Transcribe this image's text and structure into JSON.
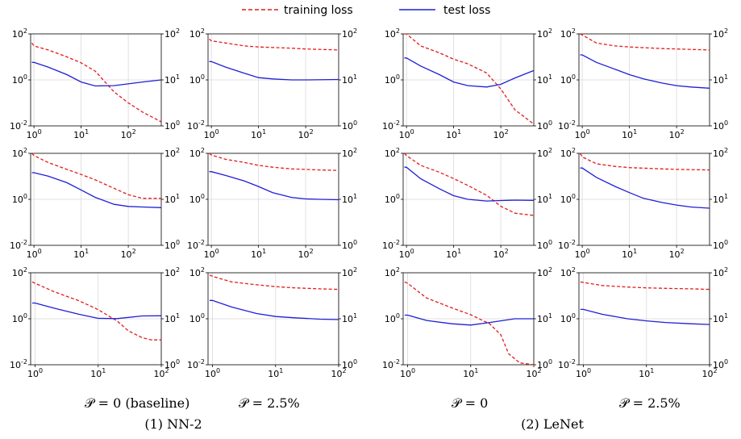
{
  "legend": {
    "training_label": "training loss",
    "test_label": "test loss",
    "training_color": "#e41a1c",
    "test_color": "#1f1fd6"
  },
  "captions": {
    "group1": "(1) NN-2",
    "group2": "(2) LeNet",
    "col1": "𝒫 = 0 (baseline)",
    "col2": "𝒫 = 2.5%",
    "col3": "𝒫 = 0",
    "col4": "𝒫 = 2.5%"
  },
  "chart_data": [
    {
      "type": "line",
      "row": 1,
      "col": 1,
      "xscale": "log",
      "xlim": [
        1,
        500
      ],
      "xticks": [
        "10^0",
        "10^1",
        "10^2"
      ],
      "left_yticks": [
        "10^-2",
        "10^0",
        "10^2"
      ],
      "right_yticks": [
        "10^0",
        "10^1",
        "10^2"
      ],
      "grid": true,
      "series": [
        {
          "name": "training loss",
          "axis": "left",
          "style": "dashed",
          "x": [
            0.9,
            1,
            2,
            5,
            10,
            20,
            50,
            100,
            200,
            500
          ],
          "y": [
            40,
            30,
            20,
            10,
            5.5,
            2.4,
            0.3,
            0.1,
            0.04,
            0.015
          ]
        },
        {
          "name": "test loss",
          "axis": "right",
          "style": "solid",
          "x": [
            0.9,
            1,
            2,
            5,
            10,
            20,
            50,
            100,
            200,
            500
          ],
          "y": [
            24,
            24,
            19,
            13,
            9,
            7.4,
            7.5,
            8.2,
            9,
            10
          ]
        }
      ]
    },
    {
      "type": "line",
      "row": 1,
      "col": 2,
      "xscale": "log",
      "xlim": [
        1,
        500
      ],
      "xticks": [
        "10^0",
        "10^1",
        "10^2"
      ],
      "left_yticks": [
        "10^-2",
        "10^0",
        "10^2"
      ],
      "right_yticks": [
        "10^0",
        "10^1",
        "10^2"
      ],
      "grid": true,
      "series": [
        {
          "name": "training loss",
          "axis": "left",
          "style": "dashed",
          "x": [
            0.9,
            1,
            2,
            5,
            10,
            50,
            100,
            500
          ],
          "y": [
            60,
            50,
            40,
            30,
            27,
            24,
            22,
            20
          ]
        },
        {
          "name": "test loss",
          "axis": "right",
          "style": "solid",
          "x": [
            0.9,
            1,
            2,
            5,
            10,
            20,
            50,
            100,
            500
          ],
          "y": [
            25,
            25,
            19,
            14,
            11.2,
            10.5,
            10,
            10,
            10.2
          ]
        }
      ]
    },
    {
      "type": "line",
      "row": 1,
      "col": 3,
      "xscale": "log",
      "xlim": [
        1,
        500
      ],
      "xticks": [
        "10^0",
        "10^1",
        "10^2"
      ],
      "left_yticks": [
        "10^-2",
        "10^0",
        "10^2"
      ],
      "right_yticks": [
        "10^0",
        "10^1",
        "10^2"
      ],
      "grid": true,
      "series": [
        {
          "name": "training loss",
          "axis": "left",
          "style": "dashed",
          "x": [
            0.9,
            1,
            2,
            5,
            10,
            20,
            50,
            100,
            200,
            500
          ],
          "y": [
            150,
            100,
            30,
            15,
            8,
            5,
            2,
            0.4,
            0.05,
            0.012
          ]
        },
        {
          "name": "test loss",
          "axis": "right",
          "style": "solid",
          "x": [
            0.9,
            1,
            2,
            5,
            10,
            20,
            50,
            100,
            200,
            500
          ],
          "y": [
            30,
            30,
            20,
            13,
            9,
            7.5,
            7,
            8,
            11,
            16
          ]
        }
      ]
    },
    {
      "type": "line",
      "row": 1,
      "col": 4,
      "xscale": "log",
      "xlim": [
        1,
        500
      ],
      "xticks": [
        "10^0",
        "10^1",
        "10^2"
      ],
      "left_yticks": [
        "10^-2",
        "10^0",
        "10^2"
      ],
      "right_yticks": [
        "10^0",
        "10^1",
        "10^2"
      ],
      "grid": true,
      "series": [
        {
          "name": "training loss",
          "axis": "left",
          "style": "dashed",
          "x": [
            0.9,
            1,
            2,
            5,
            10,
            50,
            100,
            500
          ],
          "y": [
            150,
            90,
            40,
            30,
            27,
            23,
            22,
            20
          ]
        },
        {
          "name": "test loss",
          "axis": "right",
          "style": "solid",
          "x": [
            0.9,
            1,
            2,
            5,
            10,
            20,
            50,
            100,
            200,
            500
          ],
          "y": [
            35,
            35,
            24,
            17,
            13,
            10.5,
            8.5,
            7.5,
            7,
            6.6
          ]
        }
      ]
    },
    {
      "type": "line",
      "row": 2,
      "col": 1,
      "xscale": "log",
      "xlim": [
        1,
        500
      ],
      "xticks": [
        "10^0",
        "10^1",
        "10^2"
      ],
      "left_yticks": [
        "10^-2",
        "10^0",
        "10^2"
      ],
      "right_yticks": [
        "10^0",
        "10^1",
        "10^2"
      ],
      "grid": true,
      "series": [
        {
          "name": "training loss",
          "axis": "left",
          "style": "dashed",
          "x": [
            0.9,
            1,
            2,
            5,
            10,
            20,
            50,
            100,
            200,
            500
          ],
          "y": [
            100,
            80,
            40,
            20,
            12,
            7,
            3,
            1.6,
            1.1,
            1.1
          ]
        },
        {
          "name": "test loss",
          "axis": "right",
          "style": "solid",
          "x": [
            0.9,
            1,
            2,
            5,
            10,
            20,
            50,
            100,
            200,
            500
          ],
          "y": [
            38,
            38,
            32,
            23,
            16,
            11,
            7.8,
            7,
            6.8,
            6.6
          ]
        }
      ]
    },
    {
      "type": "line",
      "row": 2,
      "col": 2,
      "xscale": "log",
      "xlim": [
        1,
        500
      ],
      "xticks": [
        "10^0",
        "10^1",
        "10^2"
      ],
      "left_yticks": [
        "10^-2",
        "10^0",
        "10^2"
      ],
      "right_yticks": [
        "10^0",
        "10^1",
        "10^2"
      ],
      "grid": true,
      "series": [
        {
          "name": "training loss",
          "axis": "left",
          "style": "dashed",
          "x": [
            0.9,
            1,
            2,
            5,
            10,
            20,
            50,
            100,
            200,
            500
          ],
          "y": [
            100,
            85,
            55,
            40,
            30,
            25,
            21,
            20,
            19,
            18
          ]
        },
        {
          "name": "test loss",
          "axis": "right",
          "style": "solid",
          "x": [
            0.9,
            1,
            2,
            5,
            10,
            20,
            50,
            100,
            200,
            500
          ],
          "y": [
            40,
            40,
            33,
            25,
            19,
            14,
            11,
            10.2,
            10,
            9.8
          ]
        }
      ]
    },
    {
      "type": "line",
      "row": 2,
      "col": 3,
      "xscale": "log",
      "xlim": [
        1,
        500
      ],
      "xticks": [
        "10^0",
        "10^1",
        "10^2"
      ],
      "left_yticks": [
        "10^-2",
        "10^0",
        "10^2"
      ],
      "right_yticks": [
        "10^0",
        "10^1",
        "10^2"
      ],
      "grid": true,
      "series": [
        {
          "name": "training loss",
          "axis": "left",
          "style": "dashed",
          "x": [
            0.9,
            1,
            2,
            5,
            10,
            20,
            50,
            100,
            200,
            500
          ],
          "y": [
            120,
            80,
            30,
            15,
            8,
            4,
            1.5,
            0.5,
            0.25,
            0.2
          ]
        },
        {
          "name": "test loss",
          "axis": "right",
          "style": "solid",
          "x": [
            0.9,
            1,
            2,
            5,
            10,
            20,
            50,
            100,
            200,
            500
          ],
          "y": [
            50,
            50,
            28,
            17,
            12,
            10,
            9.2,
            9.4,
            9.6,
            9.5
          ]
        }
      ]
    },
    {
      "type": "line",
      "row": 2,
      "col": 4,
      "xscale": "log",
      "xlim": [
        1,
        500
      ],
      "xticks": [
        "10^0",
        "10^1",
        "10^2"
      ],
      "left_yticks": [
        "10^-2",
        "10^0",
        "10^2"
      ],
      "right_yticks": [
        "10^0",
        "10^1",
        "10^2"
      ],
      "grid": true,
      "series": [
        {
          "name": "training loss",
          "axis": "left",
          "style": "dashed",
          "x": [
            0.9,
            1,
            2,
            5,
            10,
            50,
            100,
            500
          ],
          "y": [
            120,
            70,
            35,
            27,
            24,
            21,
            20,
            19
          ]
        },
        {
          "name": "test loss",
          "axis": "right",
          "style": "solid",
          "x": [
            0.9,
            1,
            2,
            5,
            10,
            20,
            50,
            100,
            200,
            500
          ],
          "y": [
            48,
            48,
            30,
            19,
            14,
            10.5,
            8.5,
            7.5,
            6.8,
            6.4
          ]
        }
      ]
    },
    {
      "type": "line",
      "row": 3,
      "col": 1,
      "xscale": "log",
      "xlim": [
        1,
        100
      ],
      "xticks": [
        "10^0",
        "10^1",
        "10^2"
      ],
      "left_yticks": [
        "10^-2",
        "10^0",
        "10^2"
      ],
      "right_yticks": [
        "10^0",
        "10^1",
        "10^2"
      ],
      "grid": true,
      "series": [
        {
          "name": "training loss",
          "axis": "left",
          "style": "dashed",
          "x": [
            0.9,
            1,
            2,
            5,
            10,
            20,
            30,
            50,
            70,
            100
          ],
          "y": [
            40,
            35,
            15,
            6,
            2.5,
            0.8,
            0.3,
            0.15,
            0.12,
            0.12
          ]
        },
        {
          "name": "test loss",
          "axis": "right",
          "style": "solid",
          "x": [
            0.9,
            1,
            2,
            5,
            10,
            20,
            50,
            100
          ],
          "y": [
            22,
            22,
            17,
            12.5,
            10.2,
            10.1,
            11.5,
            11.6
          ]
        }
      ]
    },
    {
      "type": "line",
      "row": 3,
      "col": 2,
      "xscale": "log",
      "xlim": [
        1,
        100
      ],
      "xticks": [
        "10^0",
        "10^1",
        "10^2"
      ],
      "left_yticks": [
        "10^-2",
        "10^0",
        "10^2"
      ],
      "right_yticks": [
        "10^0",
        "10^1",
        "10^2"
      ],
      "grid": true,
      "series": [
        {
          "name": "training loss",
          "axis": "left",
          "style": "dashed",
          "x": [
            0.9,
            1,
            2,
            5,
            10,
            20,
            50,
            100
          ],
          "y": [
            80,
            70,
            40,
            30,
            25,
            22,
            20,
            19
          ]
        },
        {
          "name": "test loss",
          "axis": "right",
          "style": "solid",
          "x": [
            0.9,
            1,
            2,
            5,
            10,
            20,
            50,
            100
          ],
          "y": [
            25,
            25,
            18,
            13,
            11.2,
            10.5,
            9.8,
            9.6
          ]
        }
      ]
    },
    {
      "type": "line",
      "row": 3,
      "col": 3,
      "xscale": "log",
      "xlim": [
        1,
        100
      ],
      "xticks": [
        "10^0",
        "10^1",
        "10^2"
      ],
      "left_yticks": [
        "10^-2",
        "10^0",
        "10^2"
      ],
      "right_yticks": [
        "10^0",
        "10^1",
        "10^2"
      ],
      "grid": true,
      "series": [
        {
          "name": "training loss",
          "axis": "left",
          "style": "dashed",
          "x": [
            0.9,
            1,
            2,
            5,
            10,
            20,
            30,
            40,
            60,
            100
          ],
          "y": [
            40,
            35,
            8,
            3,
            1.5,
            0.6,
            0.2,
            0.03,
            0.012,
            0.01
          ]
        },
        {
          "name": "test loss",
          "axis": "right",
          "style": "solid",
          "x": [
            0.9,
            1,
            2,
            5,
            10,
            20,
            50,
            100
          ],
          "y": [
            12,
            12,
            9.2,
            7.8,
            7.3,
            8.3,
            10,
            10
          ]
        }
      ]
    },
    {
      "type": "line",
      "row": 3,
      "col": 4,
      "xscale": "log",
      "xlim": [
        1,
        100
      ],
      "xticks": [
        "10^0",
        "10^1",
        "10^2"
      ],
      "left_yticks": [
        "10^-2",
        "10^0",
        "10^2"
      ],
      "right_yticks": [
        "10^0",
        "10^1",
        "10^2"
      ],
      "grid": true,
      "series": [
        {
          "name": "training loss",
          "axis": "left",
          "style": "dashed",
          "x": [
            0.9,
            1,
            2,
            5,
            10,
            20,
            50,
            100
          ],
          "y": [
            40,
            38,
            28,
            24,
            22,
            21,
            20,
            19
          ]
        },
        {
          "name": "test loss",
          "axis": "right",
          "style": "solid",
          "x": [
            0.9,
            1,
            2,
            5,
            10,
            20,
            50,
            100
          ],
          "y": [
            16,
            16,
            12.5,
            10,
            9,
            8.3,
            7.8,
            7.5
          ]
        }
      ]
    }
  ]
}
